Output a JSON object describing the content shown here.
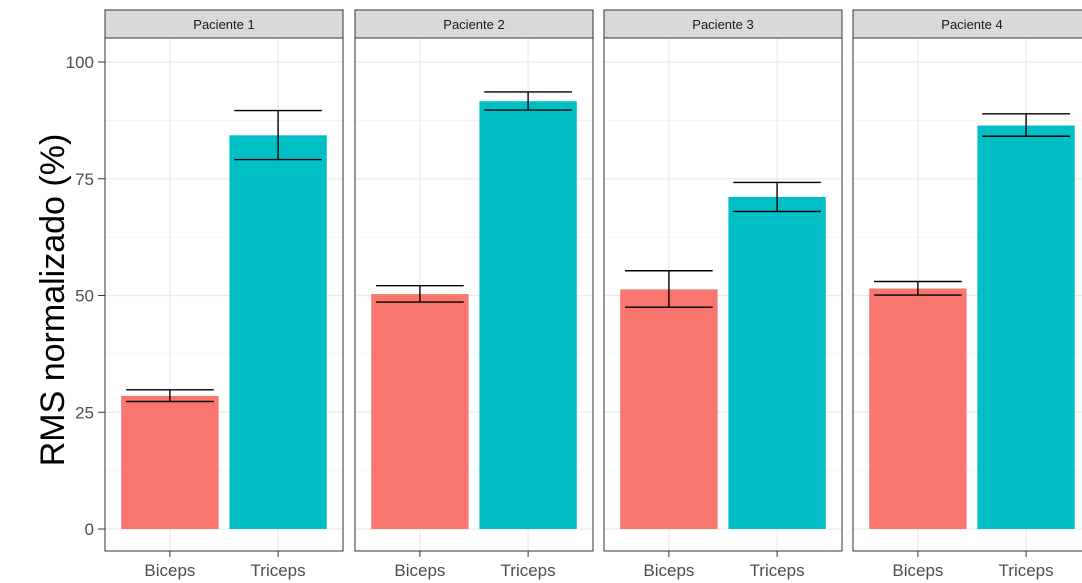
{
  "chart_data": {
    "type": "bar",
    "ylabel": "RMS normalizado (%)",
    "xlabel": "",
    "ylim": [
      0,
      105
    ],
    "yticks": [
      0,
      25,
      50,
      75,
      100
    ],
    "grid": true,
    "facets": [
      {
        "label": "Paciente 1",
        "bars": [
          {
            "category": "Biceps",
            "value": 28.5,
            "error_low": 27.3,
            "error_high": 29.8,
            "color": "#F8766D"
          },
          {
            "category": "Triceps",
            "value": 84.3,
            "error_low": 79.1,
            "error_high": 89.6,
            "color": "#00BFC4"
          }
        ]
      },
      {
        "label": "Paciente 2",
        "bars": [
          {
            "category": "Biceps",
            "value": 50.3,
            "error_low": 48.6,
            "error_high": 52.1,
            "color": "#F8766D"
          },
          {
            "category": "Triceps",
            "value": 91.6,
            "error_low": 89.7,
            "error_high": 93.6,
            "color": "#00BFC4"
          }
        ]
      },
      {
        "label": "Paciente 3",
        "bars": [
          {
            "category": "Biceps",
            "value": 51.3,
            "error_low": 47.5,
            "error_high": 55.3,
            "color": "#F8766D"
          },
          {
            "category": "Triceps",
            "value": 71.1,
            "error_low": 68.0,
            "error_high": 74.2,
            "color": "#00BFC4"
          }
        ]
      },
      {
        "label": "Paciente 4",
        "bars": [
          {
            "category": "Biceps",
            "value": 51.5,
            "error_low": 50.1,
            "error_high": 53.0,
            "color": "#F8766D"
          },
          {
            "category": "Triceps",
            "value": 86.4,
            "error_low": 84.1,
            "error_high": 88.9,
            "color": "#00BFC4"
          }
        ]
      }
    ]
  }
}
